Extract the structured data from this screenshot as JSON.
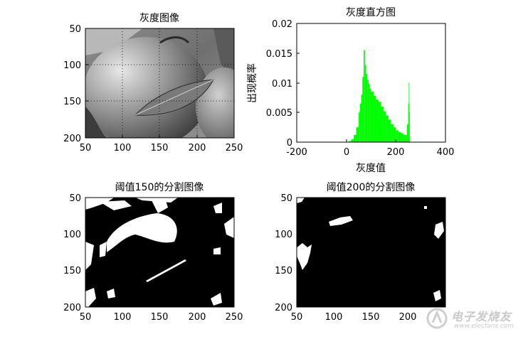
{
  "watermark": {
    "name": "电子发烧友",
    "url": "www.elecfans.com"
  },
  "chart_data": [
    {
      "type": "image",
      "title": "灰度图像",
      "xlim": [
        50,
        250
      ],
      "ylim": [
        50,
        200
      ],
      "xticks": [
        50,
        100,
        150,
        200,
        250
      ],
      "yticks": [
        50,
        100,
        150,
        200
      ],
      "grid": true,
      "colormap": "gray"
    },
    {
      "type": "bar",
      "title": "灰度直方图",
      "xlabel": "灰度值",
      "ylabel": "出现概率",
      "xlim": [
        -200,
        400
      ],
      "ylim": [
        0,
        0.02
      ],
      "xticks": [
        -200,
        0,
        200,
        400
      ],
      "yticks": [
        0,
        0.005,
        0.01,
        0.015,
        0.02
      ],
      "ytick_labels": [
        "0",
        "0.005",
        "0.01",
        "0.015",
        "0.02"
      ],
      "color": "#00ff00",
      "x": [
        10,
        20,
        30,
        40,
        50,
        55,
        60,
        65,
        70,
        75,
        80,
        85,
        90,
        95,
        100,
        110,
        120,
        130,
        140,
        150,
        160,
        170,
        180,
        190,
        200,
        210,
        220,
        230,
        240,
        245,
        250,
        252,
        254,
        255
      ],
      "values": [
        0.0002,
        0.0005,
        0.0012,
        0.0025,
        0.005,
        0.0065,
        0.008,
        0.011,
        0.0155,
        0.013,
        0.0115,
        0.0105,
        0.0098,
        0.009,
        0.0085,
        0.0078,
        0.0072,
        0.0068,
        0.006,
        0.0052,
        0.0045,
        0.0038,
        0.003,
        0.0025,
        0.002,
        0.0017,
        0.0015,
        0.0012,
        0.0012,
        0.003,
        0.0065,
        0.01,
        0.005,
        0.001
      ]
    },
    {
      "type": "image",
      "title": "阈值150的分割图像",
      "xlim": [
        50,
        250
      ],
      "ylim": [
        50,
        200
      ],
      "xticks": [
        50,
        100,
        150,
        200,
        250
      ],
      "yticks": [
        50,
        100,
        150,
        200
      ],
      "colormap": "binary"
    },
    {
      "type": "image",
      "title": "阈值200的分割图像",
      "xlim": [
        50,
        250
      ],
      "ylim": [
        50,
        200
      ],
      "xticks": [
        50,
        100,
        150,
        200
      ],
      "yticks": [
        50,
        100,
        150,
        200
      ],
      "colormap": "binary"
    }
  ]
}
